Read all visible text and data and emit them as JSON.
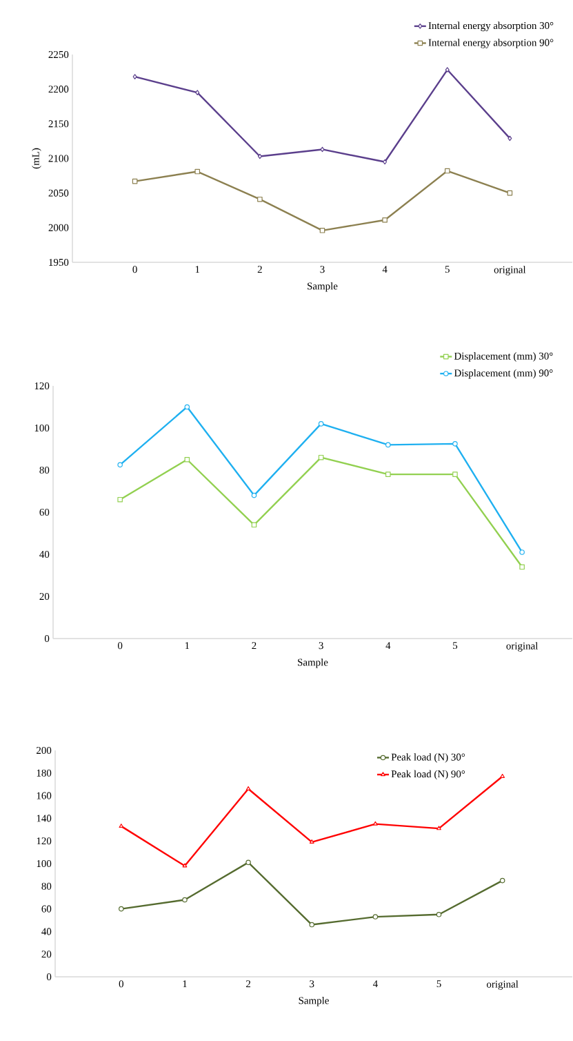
{
  "chart_data": [
    {
      "type": "line",
      "categories": [
        "0",
        "1",
        "2",
        "3",
        "4",
        "5",
        "original"
      ],
      "xlabel": "Sample",
      "ylabel": "(mL)",
      "ylim": [
        1950,
        2250
      ],
      "yticks": [
        1950,
        2000,
        2050,
        2100,
        2150,
        2200,
        2250
      ],
      "legend": "top right",
      "grid": false,
      "series": [
        {
          "name": "Internal energy absorption 30°",
          "color": "#5b3f8c",
          "marker": "diamond",
          "values": [
            2218,
            2195,
            2103,
            2113,
            2095,
            2228,
            2129
          ]
        },
        {
          "name": "Internal energy absorption 90°",
          "color": "#8c8050",
          "marker": "square",
          "values": [
            2067,
            2081,
            2041,
            1996,
            2011,
            2082,
            2050
          ]
        }
      ]
    },
    {
      "type": "line",
      "categories": [
        "0",
        "1",
        "2",
        "3",
        "4",
        "5",
        "original"
      ],
      "xlabel": "Sample",
      "ylim": [
        0,
        120
      ],
      "yticks": [
        0,
        20,
        40,
        60,
        80,
        100,
        120
      ],
      "legend": "top right",
      "grid": false,
      "series": [
        {
          "name": "Displacement (mm) 30°",
          "color": "#92d050",
          "marker": "square",
          "values": [
            66,
            85,
            54,
            86,
            78,
            78,
            34
          ]
        },
        {
          "name": "Displacement (mm) 90°",
          "color": "#1fb0f0",
          "marker": "circle",
          "values": [
            82.5,
            110,
            68,
            102,
            92,
            92.5,
            41
          ]
        }
      ]
    },
    {
      "type": "line",
      "categories": [
        "0",
        "1",
        "2",
        "3",
        "4",
        "5",
        "original"
      ],
      "xlabel": "Sample",
      "ylim": [
        0,
        200
      ],
      "yticks": [
        0,
        20,
        40,
        60,
        80,
        100,
        120,
        140,
        160,
        180,
        200
      ],
      "legend": "top right",
      "grid": false,
      "series": [
        {
          "name": "Peak load (N) 30°",
          "color": "#556b2f",
          "marker": "circle",
          "values": [
            60,
            68,
            101,
            46,
            53,
            55,
            85
          ]
        },
        {
          "name": "Peak load (N) 90°",
          "color": "#ff0000",
          "marker": "triangle",
          "values": [
            133,
            98,
            166,
            119,
            135,
            131,
            177
          ]
        }
      ]
    }
  ]
}
